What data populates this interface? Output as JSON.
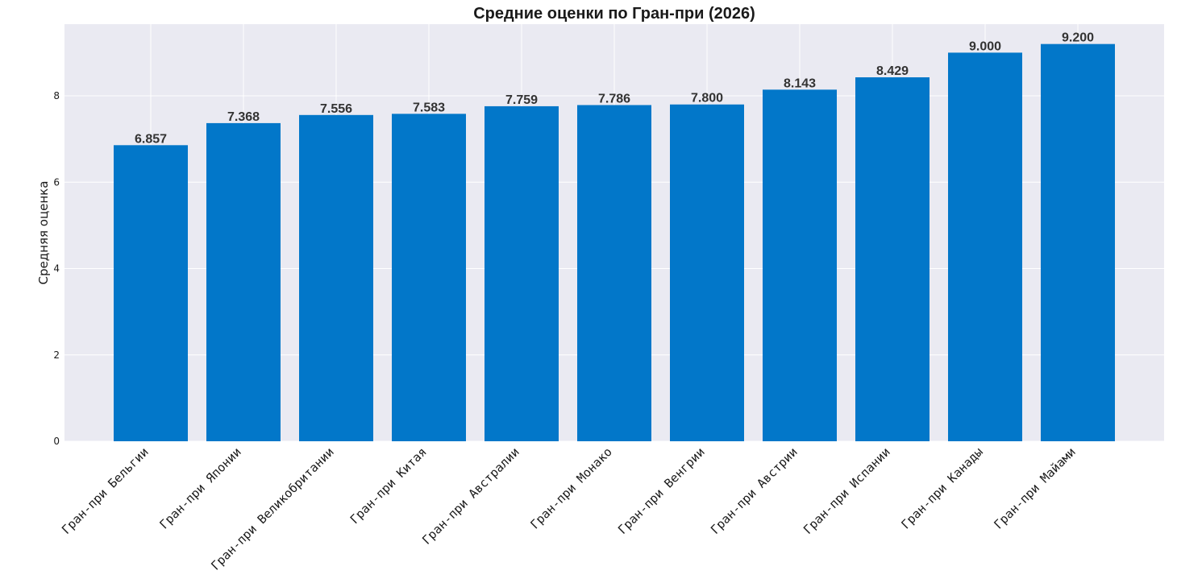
{
  "chart_data": {
    "type": "bar",
    "title": "Средние оценки по Гран-при (2026)",
    "xlabel": "",
    "ylabel": "Средняя оценка",
    "ylim": [
      0,
      9.66
    ],
    "yticks": [
      0,
      2,
      4,
      6,
      8
    ],
    "grid": true,
    "categories": [
      "Гран-при Бельгии",
      "Гран-при Японии",
      "Гран-при Великобритании",
      "Гран-при Китая",
      "Гран-при Австралии",
      "Гран-при Монако",
      "Гран-при Венгрии",
      "Гран-при Австрии",
      "Гран-при Испании",
      "Гран-при Канады",
      "Гран-при Майами"
    ],
    "values": [
      6.857,
      7.368,
      7.556,
      7.583,
      7.759,
      7.786,
      7.8,
      8.143,
      8.429,
      9.0,
      9.2
    ],
    "value_labels": [
      "6.857",
      "7.368",
      "7.556",
      "7.583",
      "7.759",
      "7.786",
      "7.800",
      "8.143",
      "8.429",
      "9.000",
      "9.200"
    ],
    "colors": {
      "bar": "#0277c9",
      "plot_background": "#eaeaf2",
      "grid": "#ffffff"
    }
  }
}
